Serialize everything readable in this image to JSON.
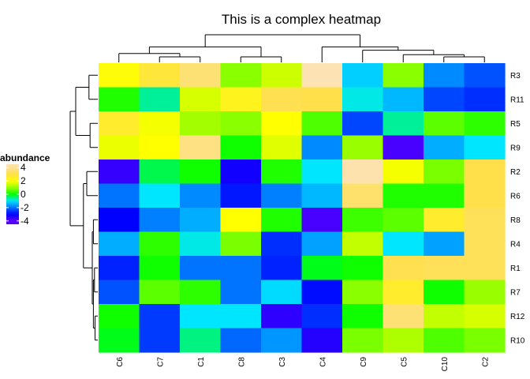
{
  "chart_data": {
    "type": "heatmap",
    "title": "This is a complex heatmap",
    "columns": [
      "C6",
      "C7",
      "C1",
      "C8",
      "C3",
      "C4",
      "C9",
      "C5",
      "C10",
      "C2"
    ],
    "rows": [
      "R3",
      "R11",
      "R5",
      "R9",
      "R2",
      "R6",
      "R8",
      "R4",
      "R1",
      "R7",
      "R12",
      "R10"
    ],
    "values": [
      [
        2.1,
        2.8,
        3.6,
        0.9,
        1.5,
        4.5,
        -1.2,
        0.9,
        -1.8,
        -2.3
      ],
      [
        0.2,
        -0.6,
        1.6,
        2.4,
        3.1,
        3.0,
        -0.9,
        -1.4,
        -2.4,
        -2.6
      ],
      [
        2.6,
        1.9,
        1.1,
        0.9,
        2.0,
        0.5,
        -2.4,
        -0.6,
        0.6,
        0.3
      ],
      [
        1.8,
        2.0,
        3.8,
        0.1,
        1.7,
        -1.8,
        1.0,
        -3.8,
        -1.5,
        -1.0
      ],
      [
        -3.6,
        -0.3,
        0.1,
        -3.2,
        0.2,
        -1.0,
        4.4,
        1.9,
        0.8,
        3.0
      ],
      [
        -2.0,
        -1.0,
        -1.8,
        -2.8,
        -1.9,
        -1.4,
        3.5,
        0.2,
        0.2,
        3.0
      ],
      [
        -3.0,
        -1.9,
        -1.5,
        2.0,
        0.2,
        -3.8,
        0.4,
        0.6,
        2.6,
        3.2
      ],
      [
        -1.5,
        0.3,
        -0.9,
        0.8,
        -2.6,
        -1.6,
        1.4,
        -1.0,
        -1.6,
        3.2
      ],
      [
        -2.7,
        0.1,
        -2.0,
        -2.0,
        -2.7,
        -0.1,
        0.1,
        3.1,
        3.2,
        3.2
      ],
      [
        -2.3,
        0.6,
        0.3,
        -2.0,
        -1.1,
        -2.9,
        0.9,
        2.6,
        0.1,
        1.0
      ],
      [
        0.1,
        -2.5,
        -1.0,
        -1.0,
        -3.5,
        -2.6,
        0.1,
        3.6,
        1.4,
        1.6
      ],
      [
        -0.1,
        -2.5,
        -0.5,
        -2.1,
        -1.7,
        -3.4,
        0.8,
        1.2,
        0.5,
        0.8
      ]
    ],
    "color_scale": {
      "stops": [
        {
          "value": -4,
          "color": "#5a00ff"
        },
        {
          "value": -3,
          "color": "#0000ff"
        },
        {
          "value": -2,
          "color": "#0073ff"
        },
        {
          "value": -1,
          "color": "#00e6ff"
        },
        {
          "value": 0,
          "color": "#00ff00"
        },
        {
          "value": 1,
          "color": "#99ff00"
        },
        {
          "value": 2,
          "color": "#ffff00"
        },
        {
          "value": 3,
          "color": "#ffe04a"
        },
        {
          "value": 4.5,
          "color": "#fde2b4"
        }
      ]
    },
    "legend": {
      "title": "abundance",
      "ticks": [
        "4",
        "2",
        "0",
        "-2",
        "-4"
      ],
      "tick_values": [
        4,
        2,
        0,
        -2,
        -4
      ],
      "placement": "left"
    },
    "row_dendrogram": "left",
    "column_dendrogram": "top"
  }
}
